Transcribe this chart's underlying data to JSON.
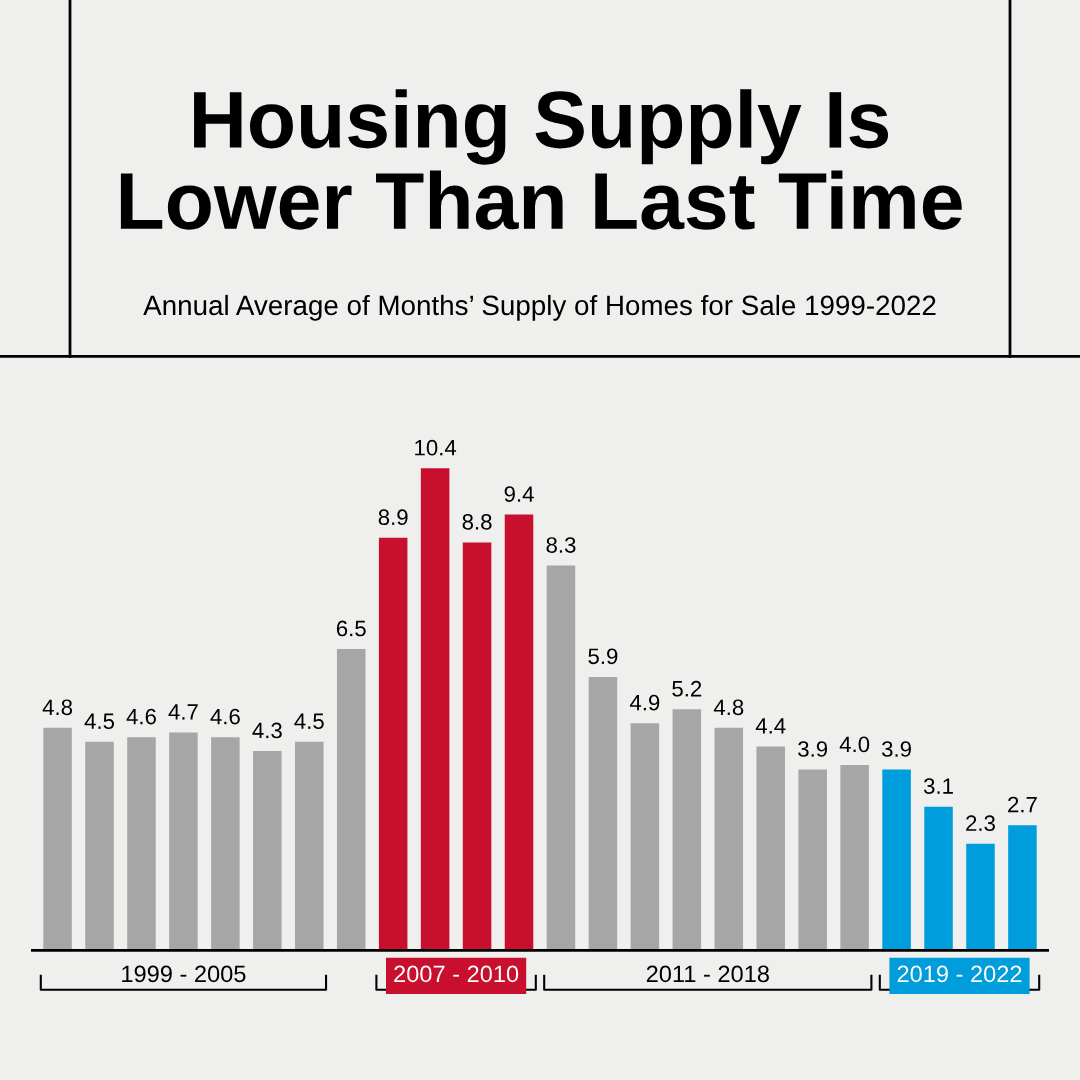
{
  "chart_data": {
    "type": "bar",
    "title": "Housing Supply Is\nLower Than Last Time",
    "subtitle": "Annual Average of Months’ Supply of Homes for Sale 1999-2022",
    "categories": [
      null,
      null,
      null,
      null,
      null,
      null,
      null,
      null,
      null,
      null,
      null,
      null,
      null,
      null,
      null,
      null,
      null,
      null,
      null,
      null,
      null,
      null,
      null,
      null
    ],
    "values": [
      4.8,
      4.5,
      4.6,
      4.7,
      4.6,
      4.3,
      4.5,
      6.5,
      8.9,
      10.4,
      8.8,
      9.4,
      8.3,
      5.9,
      4.9,
      5.2,
      4.8,
      4.4,
      3.9,
      4.0,
      3.9,
      3.1,
      2.3,
      2.7
    ],
    "colors": [
      "#a6a6a6",
      "#a6a6a6",
      "#a6a6a6",
      "#a6a6a6",
      "#a6a6a6",
      "#a6a6a6",
      "#a6a6a6",
      "#a6a6a6",
      "#c8102e",
      "#c8102e",
      "#c8102e",
      "#c8102e",
      "#a6a6a6",
      "#a6a6a6",
      "#a6a6a6",
      "#a6a6a6",
      "#a6a6a6",
      "#a6a6a6",
      "#a6a6a6",
      "#a6a6a6",
      "#009ddc",
      "#009ddc",
      "#009ddc",
      "#009ddc"
    ],
    "value_labels": [
      "4.8",
      "4.5",
      "4.6",
      "4.7",
      "4.6",
      "4.3",
      "4.5",
      "6.5",
      "8.9",
      "10.4",
      "8.8",
      "9.4",
      "8.3",
      "5.9",
      "4.9",
      "5.2",
      "4.8",
      "4.4",
      "3.9",
      "4.0",
      "3.9",
      "3.1",
      "2.3",
      "2.7"
    ],
    "grid": false,
    "legend": false,
    "annotations": [
      "1999 - 2005",
      "2007 - 2010",
      "2011 - 2018",
      "2019 - 2022"
    ]
  }
}
